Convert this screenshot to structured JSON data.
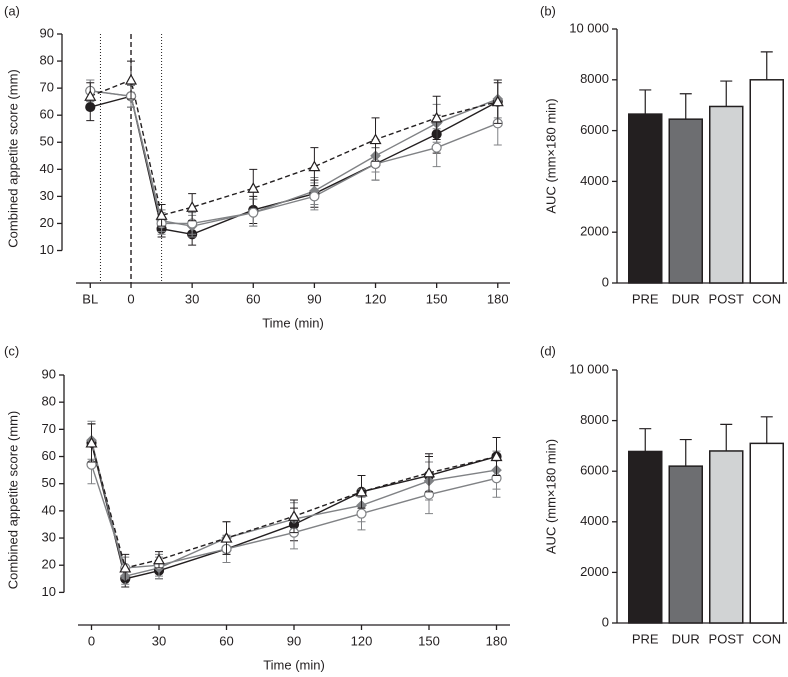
{
  "chart_data": [
    {
      "type": "line",
      "title": "(a)",
      "xlabel": "Time (min)",
      "ylabel": "Combined appetite score (mm)",
      "xlim": [
        -27,
        186
      ],
      "ylim": [
        -2,
        90
      ],
      "xticks": [
        {
          "value": -20,
          "label": "BL"
        },
        0,
        30,
        60,
        90,
        120,
        150,
        180
      ],
      "yticks": [
        10,
        20,
        30,
        40,
        50,
        60,
        70,
        80,
        90
      ],
      "vlines": [
        {
          "x": -15,
          "style": "dotted"
        },
        {
          "x": 0,
          "style": "dashed"
        },
        {
          "x": 15,
          "style": "dotted"
        }
      ],
      "grid": false,
      "x": [
        -20,
        0,
        15,
        30,
        60,
        90,
        120,
        150,
        180
      ],
      "series": [
        {
          "color": "#231f20",
          "marker": "circle-filled",
          "dash": "solid",
          "values": [
            63,
            67,
            18,
            16,
            25,
            31,
            42,
            53,
            65
          ],
          "errors": [
            5,
            4,
            3,
            4,
            5,
            5,
            6,
            7,
            7
          ]
        },
        {
          "color": "#808285",
          "marker": "diamond-filled",
          "dash": "solid",
          "values": [
            69,
            67,
            21,
            19,
            24,
            32,
            45,
            57,
            66
          ],
          "errors": [
            4,
            4,
            4,
            4,
            5,
            5,
            6,
            7,
            7
          ]
        },
        {
          "color": "#808285",
          "marker": "circle-open",
          "dash": "solid",
          "values": [
            69,
            67,
            20,
            20,
            24,
            30,
            42,
            48,
            57
          ],
          "errors": [
            4,
            4,
            4,
            4,
            5,
            5,
            6,
            7,
            8
          ]
        },
        {
          "color": "#231f20",
          "marker": "triangle-open",
          "dash": "dashed",
          "values": [
            67,
            73,
            23,
            26,
            33,
            41,
            51,
            59,
            65
          ],
          "errors": [
            5,
            7,
            4,
            5,
            7,
            7,
            8,
            8,
            8
          ]
        }
      ]
    },
    {
      "type": "bar",
      "title": "(b)",
      "ylabel": "AUC (mm×180 min)",
      "ylim": [
        0,
        10000
      ],
      "yticks": [
        0,
        2000,
        4000,
        6000,
        8000,
        {
          "value": 10000,
          "label": "10 000"
        }
      ],
      "categories": [
        "PRE",
        "DUR",
        "POST",
        "CON"
      ],
      "values": [
        6650,
        6450,
        6950,
        8000
      ],
      "errors": [
        950,
        1000,
        1000,
        1100
      ],
      "colors": [
        "#231f20",
        "#6d6e71",
        "#d1d3d4",
        "#ffffff"
      ]
    },
    {
      "type": "line",
      "title": "(c)",
      "xlabel": "Time (min)",
      "ylabel": "Combined appetite score (mm)",
      "xlim": [
        -6,
        186
      ],
      "ylim": [
        -2,
        90
      ],
      "xticks": [
        0,
        30,
        60,
        90,
        120,
        150,
        180
      ],
      "yticks": [
        10,
        20,
        30,
        40,
        50,
        60,
        70,
        80,
        90
      ],
      "grid": false,
      "x": [
        0,
        15,
        30,
        60,
        90,
        120,
        150,
        180
      ],
      "series": [
        {
          "color": "#231f20",
          "marker": "circle-filled",
          "dash": "solid",
          "values": [
            65,
            15,
            18,
            26,
            35,
            47,
            53,
            60
          ],
          "errors": [
            7,
            3,
            3,
            5,
            6,
            6,
            7,
            7
          ]
        },
        {
          "color": "#808285",
          "marker": "diamond-filled",
          "dash": "solid",
          "values": [
            66,
            16,
            19,
            30,
            37,
            42,
            51,
            55
          ],
          "errors": [
            7,
            3,
            4,
            6,
            6,
            6,
            7,
            7
          ]
        },
        {
          "color": "#808285",
          "marker": "circle-open",
          "dash": "solid",
          "values": [
            57,
            19,
            20,
            26,
            32,
            39,
            46,
            52
          ],
          "errors": [
            7,
            4,
            4,
            5,
            6,
            6,
            7,
            7
          ]
        },
        {
          "color": "#231f20",
          "marker": "triangle-open",
          "dash": "dashed",
          "values": [
            65,
            19,
            22,
            30,
            38,
            47,
            54,
            60
          ],
          "errors": [
            7,
            5,
            3,
            6,
            6,
            6,
            7,
            7
          ]
        }
      ]
    },
    {
      "type": "bar",
      "title": "(d)",
      "ylabel": "AUC (mm×180 min)",
      "ylim": [
        0,
        10000
      ],
      "yticks": [
        0,
        2000,
        4000,
        6000,
        8000,
        {
          "value": 10000,
          "label": "10 000"
        }
      ],
      "categories": [
        "PRE",
        "DUR",
        "POST",
        "CON"
      ],
      "values": [
        6780,
        6200,
        6800,
        7100
      ],
      "errors": [
        900,
        1050,
        1050,
        1050
      ],
      "colors": [
        "#231f20",
        "#6d6e71",
        "#d1d3d4",
        "#ffffff"
      ]
    }
  ]
}
